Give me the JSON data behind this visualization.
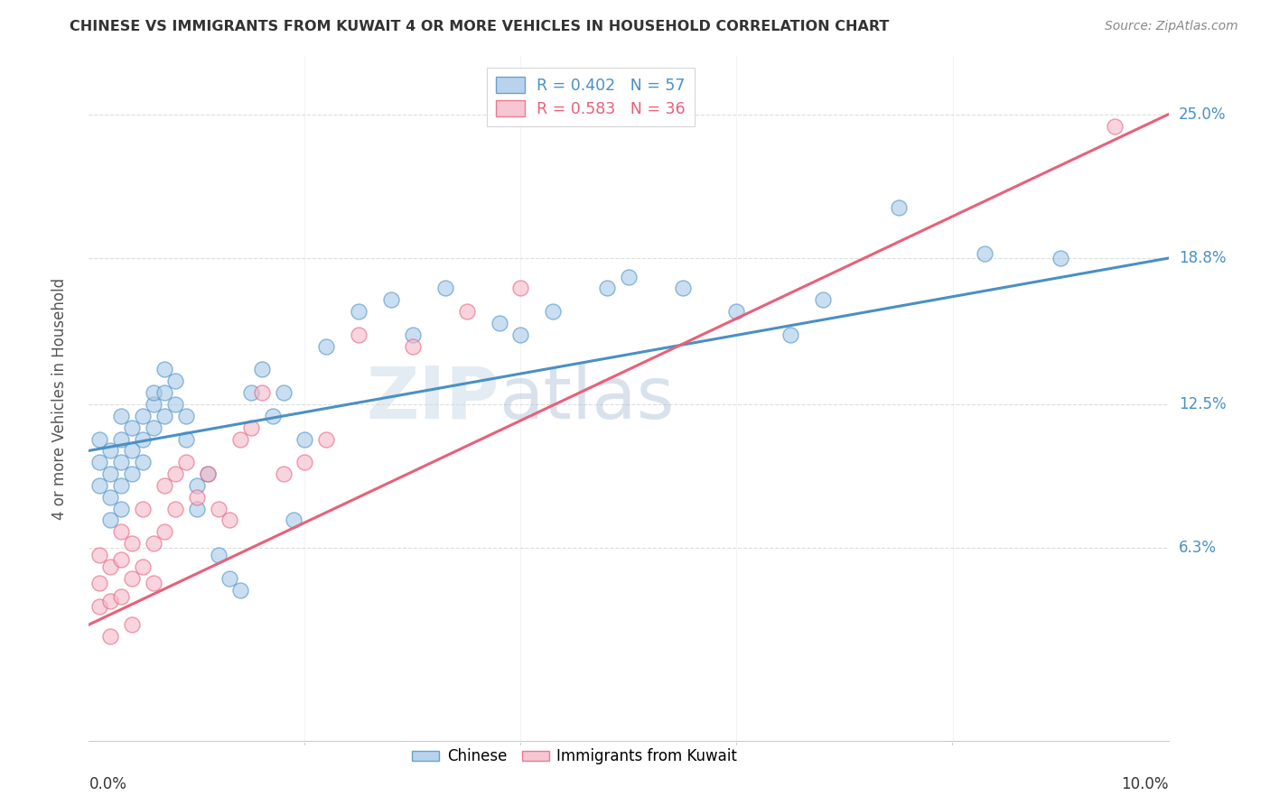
{
  "title": "CHINESE VS IMMIGRANTS FROM KUWAIT 4 OR MORE VEHICLES IN HOUSEHOLD CORRELATION CHART",
  "source": "Source: ZipAtlas.com",
  "ylabel": "4 or more Vehicles in Household",
  "ytick_labels": [
    "6.3%",
    "12.5%",
    "18.8%",
    "25.0%"
  ],
  "ytick_values": [
    0.063,
    0.125,
    0.188,
    0.25
  ],
  "xlim": [
    0.0,
    0.1
  ],
  "ylim": [
    -0.02,
    0.275
  ],
  "legend_1_label": "R = 0.402   N = 57",
  "legend_2_label": "R = 0.583   N = 36",
  "legend_1_color": "#a8c8e8",
  "legend_2_color": "#f4b8c8",
  "line_1_color": "#4a90c4",
  "line_2_color": "#e8607a",
  "watermark_zip": "ZIP",
  "watermark_atlas": "atlas",
  "chinese_x": [
    0.001,
    0.001,
    0.001,
    0.002,
    0.002,
    0.002,
    0.002,
    0.003,
    0.003,
    0.003,
    0.003,
    0.003,
    0.004,
    0.004,
    0.004,
    0.005,
    0.005,
    0.005,
    0.006,
    0.006,
    0.006,
    0.007,
    0.007,
    0.007,
    0.008,
    0.008,
    0.009,
    0.009,
    0.01,
    0.01,
    0.011,
    0.012,
    0.013,
    0.014,
    0.015,
    0.016,
    0.017,
    0.018,
    0.019,
    0.02,
    0.022,
    0.025,
    0.028,
    0.03,
    0.033,
    0.038,
    0.04,
    0.043,
    0.048,
    0.05,
    0.055,
    0.06,
    0.065,
    0.068,
    0.075,
    0.083,
    0.09
  ],
  "chinese_y": [
    0.09,
    0.1,
    0.11,
    0.085,
    0.095,
    0.105,
    0.075,
    0.1,
    0.09,
    0.08,
    0.11,
    0.12,
    0.095,
    0.105,
    0.115,
    0.1,
    0.11,
    0.12,
    0.115,
    0.125,
    0.13,
    0.12,
    0.13,
    0.14,
    0.125,
    0.135,
    0.11,
    0.12,
    0.08,
    0.09,
    0.095,
    0.06,
    0.05,
    0.045,
    0.13,
    0.14,
    0.12,
    0.13,
    0.075,
    0.11,
    0.15,
    0.165,
    0.17,
    0.155,
    0.175,
    0.16,
    0.155,
    0.165,
    0.175,
    0.18,
    0.175,
    0.165,
    0.155,
    0.17,
    0.21,
    0.19,
    0.188
  ],
  "kuwait_x": [
    0.001,
    0.001,
    0.001,
    0.002,
    0.002,
    0.002,
    0.003,
    0.003,
    0.003,
    0.004,
    0.004,
    0.004,
    0.005,
    0.005,
    0.006,
    0.006,
    0.007,
    0.007,
    0.008,
    0.008,
    0.009,
    0.01,
    0.011,
    0.012,
    0.013,
    0.014,
    0.015,
    0.016,
    0.018,
    0.02,
    0.022,
    0.025,
    0.03,
    0.035,
    0.04,
    0.095
  ],
  "kuwait_y": [
    0.06,
    0.048,
    0.038,
    0.055,
    0.04,
    0.025,
    0.07,
    0.058,
    0.042,
    0.065,
    0.05,
    0.03,
    0.08,
    0.055,
    0.065,
    0.048,
    0.09,
    0.07,
    0.095,
    0.08,
    0.1,
    0.085,
    0.095,
    0.08,
    0.075,
    0.11,
    0.115,
    0.13,
    0.095,
    0.1,
    0.11,
    0.155,
    0.15,
    0.165,
    0.175,
    0.245
  ],
  "chinese_line_x": [
    0.0,
    0.1
  ],
  "chinese_line_y": [
    0.105,
    0.188
  ],
  "kuwait_line_x": [
    0.0,
    0.1
  ],
  "kuwait_line_y": [
    0.03,
    0.25
  ]
}
